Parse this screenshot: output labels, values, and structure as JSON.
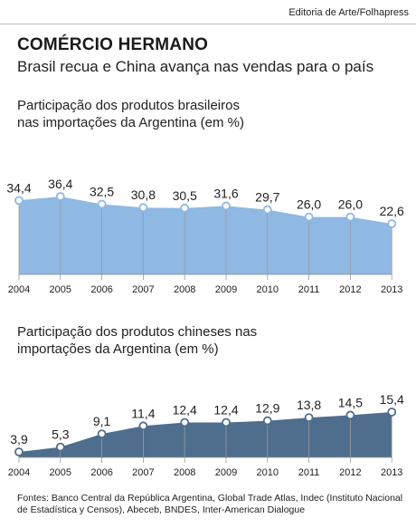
{
  "header": {
    "credit": "Editoria de Arte/Folhapress",
    "title": "COMÉRCIO HERMANO",
    "subtitle": "Brasil recua e China avança nas vendas para o país"
  },
  "colors": {
    "brazil_fill": "#8fb8e3",
    "china_fill": "#4f6e8e",
    "grid": "#9a9a9a"
  },
  "chart_data": [
    {
      "type": "area",
      "title": "Participação dos produtos brasileiros nas importações da Argentina (em %)",
      "title_lines": [
        "Participação dos produtos brasileiros",
        "nas importações da Argentina (em %)"
      ],
      "x": [
        "2004",
        "2005",
        "2006",
        "2007",
        "2008",
        "2009",
        "2010",
        "2011",
        "2012",
        "2013"
      ],
      "values": [
        34.4,
        36.4,
        32.5,
        30.8,
        30.5,
        31.6,
        29.7,
        26.0,
        26.0,
        22.6
      ],
      "value_labels": [
        "34,4",
        "36,4",
        "32,5",
        "30,8",
        "30,5",
        "31,6",
        "29,7",
        "26,0",
        "26,0",
        "22,6"
      ],
      "ylim": [
        0,
        40
      ],
      "grid": "vertical"
    },
    {
      "type": "area",
      "title": "Participação dos produtos chineses nas importações da Argentina (em %)",
      "title_lines": [
        "Participação dos produtos chineses nas",
        "importações da Argentina (em %)"
      ],
      "x": [
        "2004",
        "2005",
        "2006",
        "2007",
        "2008",
        "2009",
        "2010",
        "2011",
        "2012",
        "2013"
      ],
      "values": [
        3.9,
        5.3,
        9.1,
        11.4,
        12.4,
        12.4,
        12.9,
        13.8,
        14.5,
        15.4
      ],
      "value_labels": [
        "3,9",
        "5,3",
        "9,1",
        "11,4",
        "12,4",
        "12,4",
        "12,9",
        "13,8",
        "14,5",
        "15,4"
      ],
      "ylim": [
        2,
        16
      ],
      "grid": "vertical"
    }
  ],
  "sources": "Fontes: Banco Central da República Argentina, Global Trade Atlas, Indec (Instituto Nacional de Estadística y Censos), Abeceb, BNDES, Inter-American Dialogue"
}
